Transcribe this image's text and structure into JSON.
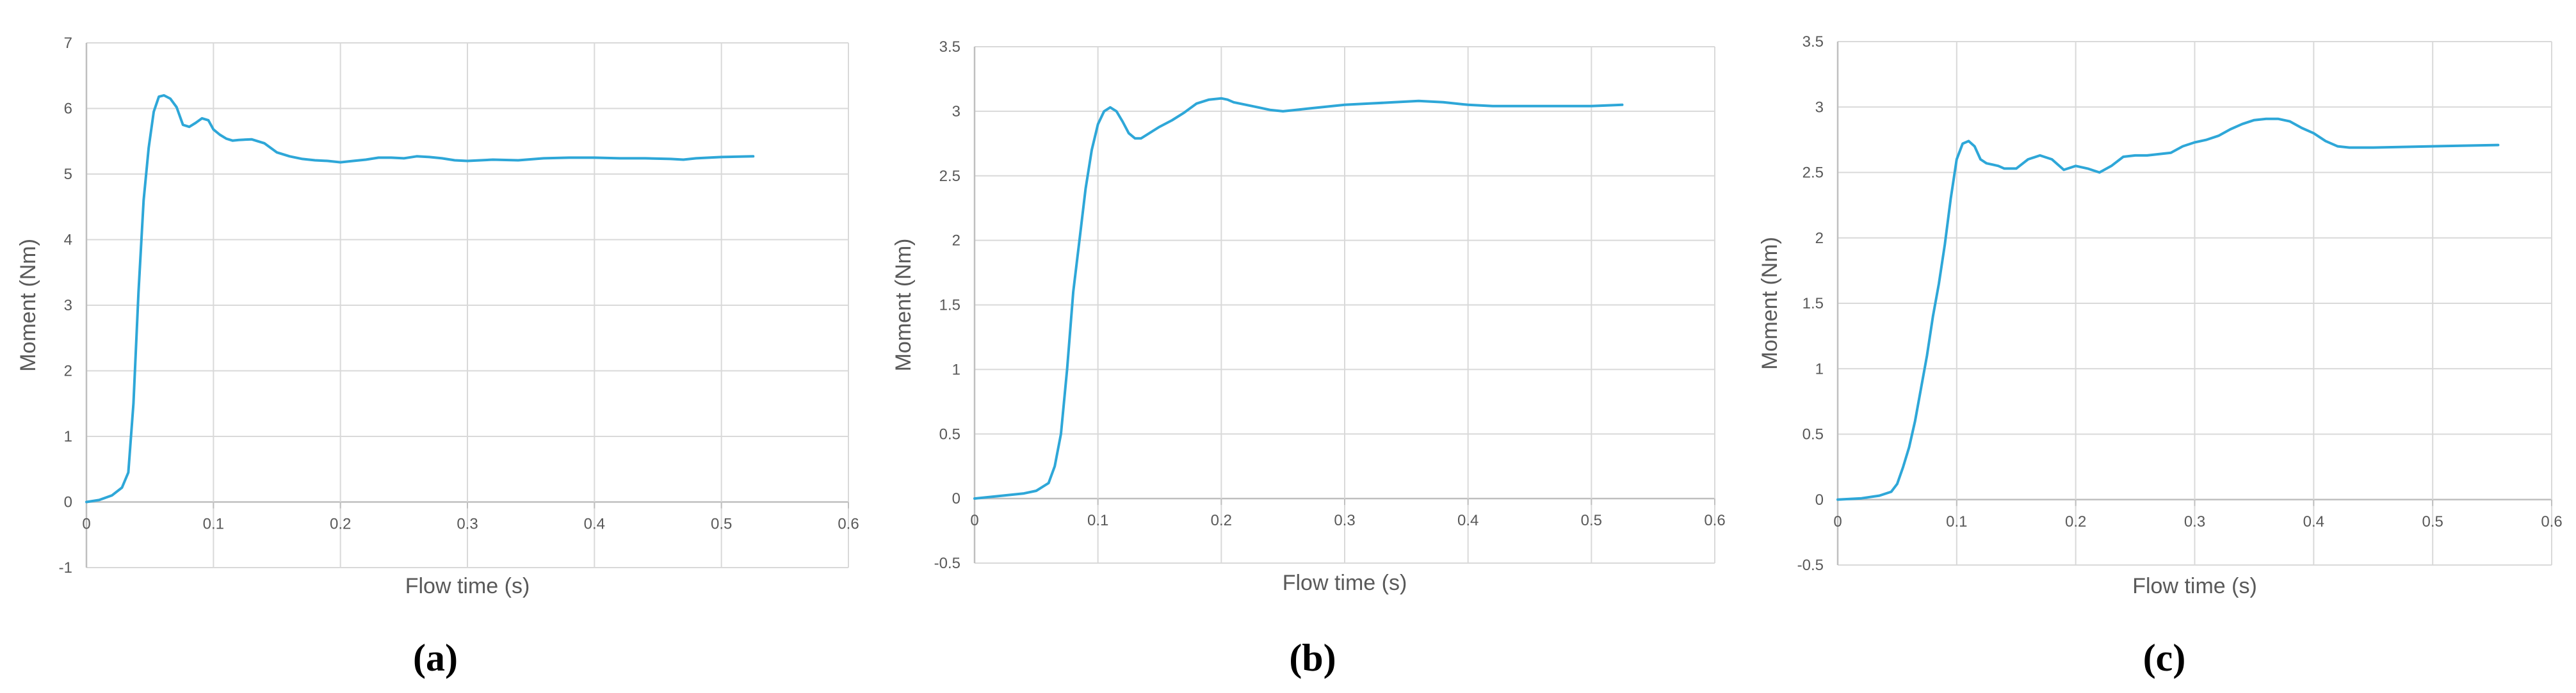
{
  "colors": {
    "series": "#2EA7D8",
    "grid": "#D9D9D9",
    "axis": "#BFBFBF",
    "text": "#595959"
  },
  "chart_data": [
    {
      "type": "line",
      "panel_label": "(a)",
      "xlabel": "Flow time (s)",
      "ylabel": "Moment (Nm)",
      "xlim": [
        0,
        0.6
      ],
      "ylim": [
        -1,
        7
      ],
      "xticks": [
        0,
        0.1,
        0.2,
        0.3,
        0.4,
        0.5,
        0.6
      ],
      "xtick_labels": [
        "0",
        "0.1",
        "0.2",
        "0.3",
        "0.4",
        "0.5",
        "0.6"
      ],
      "yticks": [
        -1,
        0,
        1,
        2,
        3,
        4,
        5,
        6,
        7
      ],
      "ytick_labels": [
        "-1",
        "0",
        "1",
        "2",
        "3",
        "4",
        "5",
        "6",
        "7"
      ],
      "grid": true,
      "series": [
        {
          "x": [
            0,
            0.01,
            0.02,
            0.028,
            0.033,
            0.037,
            0.041,
            0.045,
            0.049,
            0.053,
            0.057,
            0.061,
            0.066,
            0.071,
            0.076,
            0.081,
            0.086,
            0.091,
            0.096,
            0.1,
            0.105,
            0.11,
            0.115,
            0.12,
            0.13,
            0.14,
            0.15,
            0.16,
            0.17,
            0.18,
            0.19,
            0.2,
            0.21,
            0.22,
            0.23,
            0.24,
            0.25,
            0.26,
            0.27,
            0.28,
            0.29,
            0.3,
            0.32,
            0.34,
            0.36,
            0.38,
            0.4,
            0.42,
            0.44,
            0.46,
            0.47,
            0.48,
            0.5,
            0.525
          ],
          "y": [
            0,
            0.03,
            0.1,
            0.22,
            0.45,
            1.5,
            3.2,
            4.6,
            5.4,
            5.95,
            6.18,
            6.2,
            6.15,
            6.02,
            5.75,
            5.72,
            5.78,
            5.85,
            5.82,
            5.68,
            5.6,
            5.54,
            5.51,
            5.52,
            5.53,
            5.47,
            5.33,
            5.27,
            5.23,
            5.21,
            5.2,
            5.18,
            5.2,
            5.22,
            5.25,
            5.25,
            5.24,
            5.27,
            5.26,
            5.24,
            5.21,
            5.2,
            5.22,
            5.21,
            5.24,
            5.25,
            5.25,
            5.24,
            5.24,
            5.23,
            5.22,
            5.24,
            5.26,
            5.27
          ]
        }
      ]
    },
    {
      "type": "line",
      "panel_label": "(b)",
      "xlabel": "Flow time (s)",
      "ylabel": "Moment (Nm)",
      "xlim": [
        0,
        0.6
      ],
      "ylim": [
        -0.5,
        3.5
      ],
      "xticks": [
        0,
        0.1,
        0.2,
        0.3,
        0.4,
        0.5,
        0.6
      ],
      "xtick_labels": [
        "0",
        "0.1",
        "0.2",
        "0.3",
        "0.4",
        "0.5",
        "0.6"
      ],
      "yticks": [
        -0.5,
        0,
        0.5,
        1,
        1.5,
        2,
        2.5,
        3,
        3.5
      ],
      "ytick_labels": [
        "-0.5",
        "0",
        "0.5",
        "1",
        "1.5",
        "2",
        "2.5",
        "3",
        "3.5"
      ],
      "grid": true,
      "series": [
        {
          "x": [
            0,
            0.02,
            0.04,
            0.05,
            0.06,
            0.065,
            0.07,
            0.075,
            0.08,
            0.085,
            0.09,
            0.095,
            0.1,
            0.105,
            0.11,
            0.115,
            0.12,
            0.125,
            0.13,
            0.135,
            0.14,
            0.145,
            0.15,
            0.16,
            0.17,
            0.18,
            0.19,
            0.2,
            0.205,
            0.21,
            0.22,
            0.23,
            0.24,
            0.25,
            0.26,
            0.27,
            0.28,
            0.3,
            0.32,
            0.34,
            0.36,
            0.38,
            0.4,
            0.42,
            0.44,
            0.46,
            0.48,
            0.5,
            0.525
          ],
          "y": [
            0,
            0.02,
            0.04,
            0.06,
            0.12,
            0.25,
            0.5,
            1.0,
            1.6,
            2.0,
            2.4,
            2.7,
            2.9,
            3.0,
            3.03,
            3.0,
            2.92,
            2.83,
            2.79,
            2.79,
            2.82,
            2.85,
            2.88,
            2.93,
            2.99,
            3.06,
            3.09,
            3.1,
            3.09,
            3.07,
            3.05,
            3.03,
            3.01,
            3.0,
            3.01,
            3.02,
            3.03,
            3.05,
            3.06,
            3.07,
            3.08,
            3.07,
            3.05,
            3.04,
            3.04,
            3.04,
            3.04,
            3.04,
            3.05
          ]
        }
      ]
    },
    {
      "type": "line",
      "panel_label": "(c)",
      "xlabel": "Flow time (s)",
      "ylabel": "Moment (Nm)",
      "xlim": [
        0,
        0.6
      ],
      "ylim": [
        -0.5,
        3.5
      ],
      "xticks": [
        0,
        0.1,
        0.2,
        0.3,
        0.4,
        0.5,
        0.6
      ],
      "xtick_labels": [
        "0",
        "0.1",
        "0.2",
        "0.3",
        "0.4",
        "0.5",
        "0.6"
      ],
      "yticks": [
        -0.5,
        0,
        0.5,
        1,
        1.5,
        2,
        2.5,
        3,
        3.5
      ],
      "ytick_labels": [
        "-0.5",
        "0",
        "0.5",
        "1",
        "1.5",
        "2",
        "2.5",
        "3",
        "3.5"
      ],
      "grid": true,
      "series": [
        {
          "x": [
            0,
            0.02,
            0.035,
            0.045,
            0.05,
            0.055,
            0.06,
            0.065,
            0.07,
            0.075,
            0.08,
            0.085,
            0.09,
            0.095,
            0.1,
            0.105,
            0.11,
            0.115,
            0.12,
            0.125,
            0.13,
            0.135,
            0.14,
            0.15,
            0.16,
            0.17,
            0.18,
            0.19,
            0.2,
            0.21,
            0.22,
            0.23,
            0.24,
            0.25,
            0.26,
            0.28,
            0.29,
            0.3,
            0.31,
            0.32,
            0.33,
            0.34,
            0.35,
            0.36,
            0.37,
            0.38,
            0.39,
            0.4,
            0.41,
            0.42,
            0.43,
            0.45,
            0.5,
            0.555
          ],
          "y": [
            0,
            0.01,
            0.03,
            0.06,
            0.12,
            0.25,
            0.4,
            0.6,
            0.85,
            1.1,
            1.4,
            1.65,
            1.95,
            2.3,
            2.6,
            2.72,
            2.74,
            2.7,
            2.6,
            2.57,
            2.56,
            2.55,
            2.53,
            2.53,
            2.6,
            2.63,
            2.6,
            2.52,
            2.55,
            2.53,
            2.5,
            2.55,
            2.62,
            2.63,
            2.63,
            2.65,
            2.7,
            2.73,
            2.75,
            2.78,
            2.83,
            2.87,
            2.9,
            2.91,
            2.91,
            2.89,
            2.84,
            2.8,
            2.74,
            2.7,
            2.69,
            2.69,
            2.7,
            2.71
          ]
        }
      ]
    }
  ]
}
